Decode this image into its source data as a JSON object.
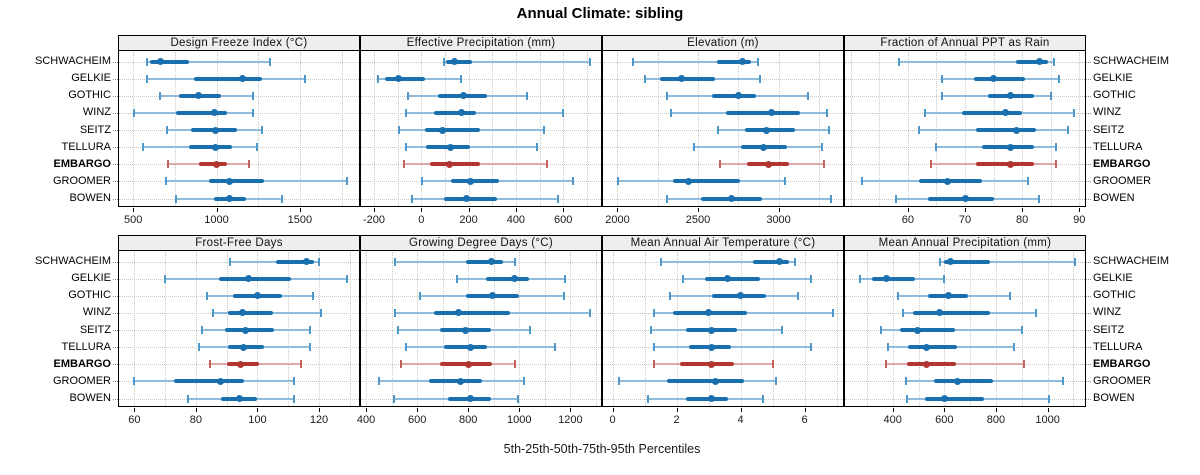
{
  "title": "Annual Climate: sibling",
  "footer": "5th-25th-50th-75th-95th Percentiles",
  "sites": [
    "SCHWACHEIM",
    "GELKIE",
    "GOTHIC",
    "WINZ",
    "SEITZ",
    "TELLURA",
    "EMBARGO",
    "GROOMER",
    "BOWEN"
  ],
  "highlight_site": "EMBARGO",
  "colors": {
    "blue_main": "#1a6fae",
    "blue_thin": "#8fbcdc",
    "blue_cap": "#4e97c9",
    "red_main": "#b23531",
    "red_thin": "#ddaaa8",
    "red_cap": "#c4625e",
    "grid": "#c8c8c8",
    "strip_bg": "#eeeeee",
    "border": "#000000"
  },
  "chart_data": {
    "type": "dot-whisker-trellis",
    "percentiles": [
      5,
      25,
      50,
      75,
      95
    ],
    "legend_note": "thin line = 5th-95th, thick line = 25th-75th, dot = 50th percentile",
    "grid": "dotted",
    "panels": [
      {
        "title": "Design Freeze Index (°C)",
        "xlim": [
          415,
          1855
        ],
        "ticks": [
          500,
          1000,
          1500
        ],
        "grid_step": 250,
        "values": [
          [
            580,
            600,
            665,
            835,
            1320
          ],
          [
            585,
            865,
            1155,
            1275,
            1530
          ],
          [
            660,
            775,
            890,
            1025,
            1220
          ],
          [
            505,
            755,
            985,
            1065,
            1220
          ],
          [
            705,
            845,
            995,
            1125,
            1275
          ],
          [
            560,
            835,
            995,
            1095,
            1245
          ],
          [
            710,
            895,
            1000,
            1060,
            1195
          ],
          [
            695,
            955,
            1075,
            1285,
            1785
          ],
          [
            755,
            985,
            1075,
            1175,
            1390
          ]
        ]
      },
      {
        "title": "Effective Precipitation (mm)",
        "xlim": [
          -255,
          760
        ],
        "ticks": [
          -200,
          0,
          200,
          400,
          600
        ],
        "grid_step": 100,
        "values": [
          [
            95,
            105,
            140,
            215,
            715
          ],
          [
            -185,
            -155,
            -95,
            15,
            170
          ],
          [
            -55,
            70,
            180,
            280,
            445
          ],
          [
            -65,
            55,
            170,
            230,
            600
          ],
          [
            -95,
            15,
            90,
            250,
            520
          ],
          [
            -65,
            20,
            125,
            205,
            490
          ],
          [
            -75,
            35,
            120,
            250,
            530
          ],
          [
            5,
            125,
            210,
            330,
            640
          ],
          [
            -40,
            95,
            190,
            320,
            580
          ]
        ]
      },
      {
        "title": "Elevation (m)",
        "xlim": [
          1910,
          3400
        ],
        "ticks": [
          2000,
          2500,
          3000
        ],
        "grid_step": 250,
        "values": [
          [
            2095,
            2615,
            2775,
            2830,
            2875
          ],
          [
            2170,
            2265,
            2400,
            2605,
            2885
          ],
          [
            2305,
            2585,
            2750,
            2860,
            3180
          ],
          [
            2335,
            2675,
            2955,
            3130,
            3300
          ],
          [
            2625,
            2790,
            2925,
            3100,
            3315
          ],
          [
            2475,
            2765,
            2905,
            3055,
            3270
          ],
          [
            2635,
            2805,
            2935,
            3065,
            3280
          ],
          [
            2005,
            2345,
            2440,
            2760,
            3040
          ],
          [
            2310,
            2520,
            2705,
            2895,
            3325
          ]
        ]
      },
      {
        "title": "Fraction of Annual PPT as Rain",
        "xlim": [
          49,
          91
        ],
        "ticks": [
          60,
          70,
          80,
          90
        ],
        "grid_step": 5,
        "values": [
          [
            58.5,
            79,
            83,
            84.5,
            85.5
          ],
          [
            66,
            71.5,
            75,
            80.5,
            86.5
          ],
          [
            66,
            74,
            78,
            82,
            85
          ],
          [
            63,
            69.5,
            77,
            80,
            89
          ],
          [
            62,
            72,
            79,
            82.5,
            88
          ],
          [
            65,
            73,
            78,
            82,
            86
          ],
          [
            64,
            72,
            78,
            82,
            86
          ],
          [
            52,
            62,
            67,
            73,
            81
          ],
          [
            58,
            63.5,
            70,
            75,
            83
          ]
        ]
      },
      {
        "title": "Frost-Free Days",
        "xlim": [
          55,
          133
        ],
        "ticks": [
          60,
          80,
          100,
          120
        ],
        "grid_step": 10,
        "values": [
          [
            91,
            106,
            116,
            118.5,
            120
          ],
          [
            70,
            87.5,
            97,
            111,
            129
          ],
          [
            83.5,
            92,
            100,
            108,
            118
          ],
          [
            85.5,
            90.5,
            95,
            105,
            120.5
          ],
          [
            82,
            89.5,
            96,
            105.5,
            117
          ],
          [
            81,
            90.5,
            95.5,
            102,
            117
          ],
          [
            84.5,
            90,
            94.5,
            100.5,
            114
          ],
          [
            60,
            73,
            88,
            95.5,
            112
          ],
          [
            77.5,
            88,
            94,
            100,
            112
          ]
        ]
      },
      {
        "title": "Growing Degree Days (°C)",
        "xlim": [
          380,
          1320
        ],
        "ticks": [
          400,
          600,
          800,
          1000,
          1200
        ],
        "grid_step": 100,
        "values": [
          [
            515,
            790,
            890,
            935,
            985
          ],
          [
            755,
            870,
            980,
            1040,
            1180
          ],
          [
            610,
            790,
            895,
            1000,
            1175
          ],
          [
            515,
            665,
            760,
            965,
            1275
          ],
          [
            525,
            690,
            790,
            890,
            1040
          ],
          [
            555,
            705,
            810,
            875,
            1140
          ],
          [
            535,
            690,
            800,
            895,
            985
          ],
          [
            450,
            645,
            770,
            855,
            1020
          ],
          [
            510,
            720,
            810,
            890,
            995
          ]
        ]
      },
      {
        "title": "Mean Annual Air Temperature (°C)",
        "xlim": [
          -0.3,
          7.2
        ],
        "ticks": [
          0,
          2,
          4,
          6
        ],
        "grid_step": 1,
        "values": [
          [
            1.5,
            4.4,
            5.2,
            5.5,
            5.7
          ],
          [
            2.2,
            2.9,
            3.6,
            4.6,
            6.2
          ],
          [
            1.8,
            3.1,
            4.0,
            4.8,
            5.8
          ],
          [
            1.3,
            1.9,
            3.0,
            4.2,
            6.9
          ],
          [
            1.2,
            2.3,
            3.1,
            3.9,
            5.3
          ],
          [
            1.3,
            2.4,
            3.1,
            3.7,
            6.2
          ],
          [
            1.3,
            2.1,
            3.1,
            3.8,
            5.0
          ],
          [
            0.2,
            1.7,
            3.2,
            4.1,
            5.1
          ],
          [
            1.1,
            2.3,
            3.1,
            3.6,
            4.7
          ]
        ]
      },
      {
        "title": "Mean Annual Precipitation (mm)",
        "xlim": [
          215,
          1145
        ],
        "ticks": [
          400,
          600,
          800,
          1000
        ],
        "grid_step": 100,
        "values": [
          [
            585,
            600,
            625,
            775,
            1105
          ],
          [
            275,
            320,
            375,
            485,
            600
          ],
          [
            420,
            535,
            615,
            690,
            855
          ],
          [
            440,
            480,
            580,
            775,
            955
          ],
          [
            355,
            430,
            495,
            640,
            900
          ],
          [
            380,
            460,
            530,
            650,
            870
          ],
          [
            375,
            455,
            530,
            645,
            910
          ],
          [
            450,
            560,
            650,
            790,
            1060
          ],
          [
            455,
            525,
            600,
            755,
            1005
          ]
        ]
      }
    ]
  }
}
